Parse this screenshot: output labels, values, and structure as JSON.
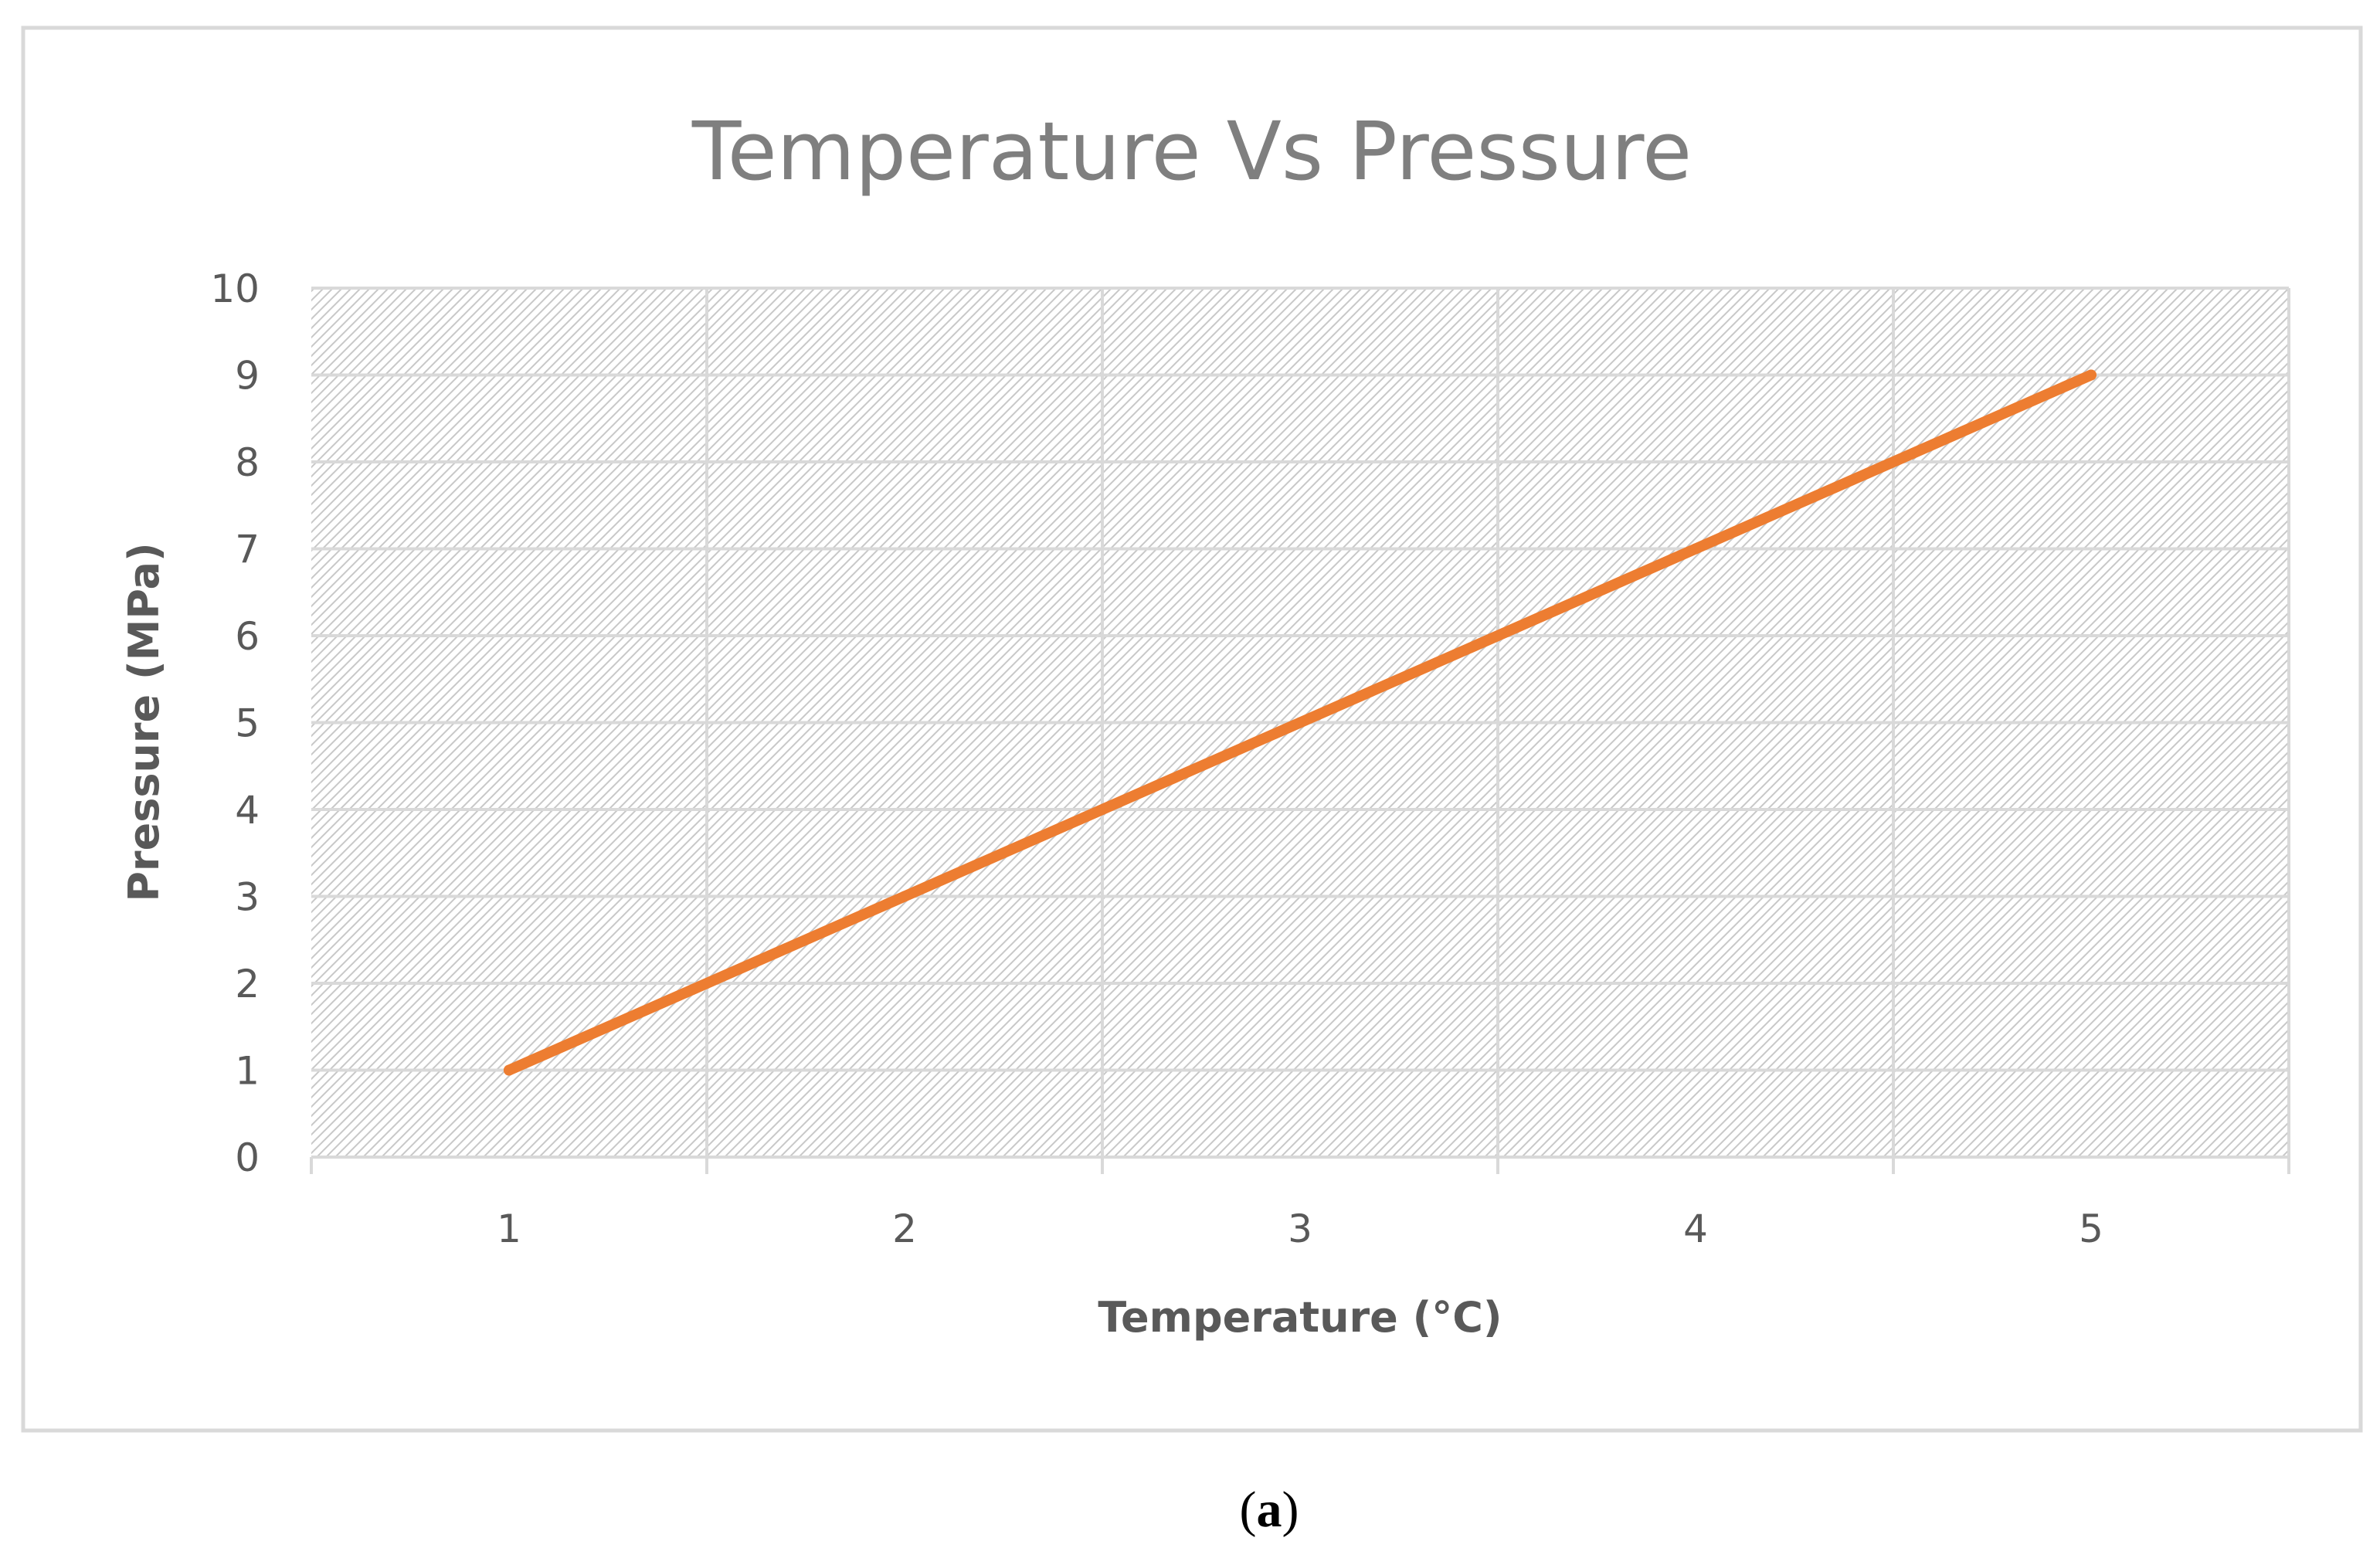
{
  "chart_data": {
    "type": "line",
    "title": "Temperature Vs Pressure",
    "xlabel": "Temperature (°C)",
    "ylabel": "Pressure (MPa)",
    "categories": [
      "1",
      "2",
      "3",
      "4",
      "5"
    ],
    "series": [
      {
        "name": "Pressure",
        "values": [
          1,
          3,
          5,
          7,
          9
        ],
        "color": "#ed7d31"
      }
    ],
    "ylim": [
      0,
      10
    ],
    "yticks": [
      "0",
      "1",
      "2",
      "3",
      "4",
      "5",
      "6",
      "7",
      "8",
      "9",
      "10"
    ],
    "grid": true,
    "legend": "none",
    "plot_background": "hatched"
  },
  "caption": {
    "open": "(",
    "letter": "a",
    "close": ")"
  },
  "colors": {
    "line": "#ed7d31",
    "grid": "#d9d9d9",
    "hatch": "#c8c8c8",
    "frame": "#d9d9d9",
    "title": "#7f7f7f",
    "text": "#595959"
  }
}
